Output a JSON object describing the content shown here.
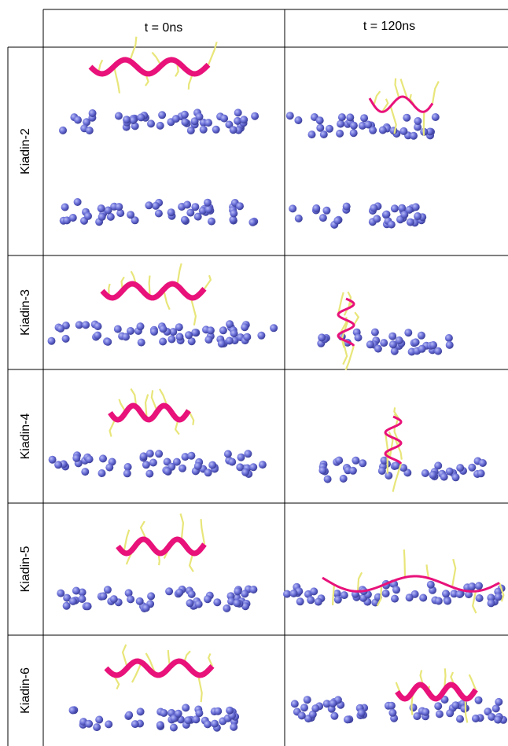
{
  "header": {
    "columns": [
      "t = 0ns",
      "t = 120ns"
    ]
  },
  "rows": [
    {
      "label": "Kiadin-2"
    },
    {
      "label": "Kiadin-3"
    },
    {
      "label": "Kiadin-4"
    },
    {
      "label": "Kiadin-5"
    },
    {
      "label": "Kiadin-6"
    }
  ]
}
